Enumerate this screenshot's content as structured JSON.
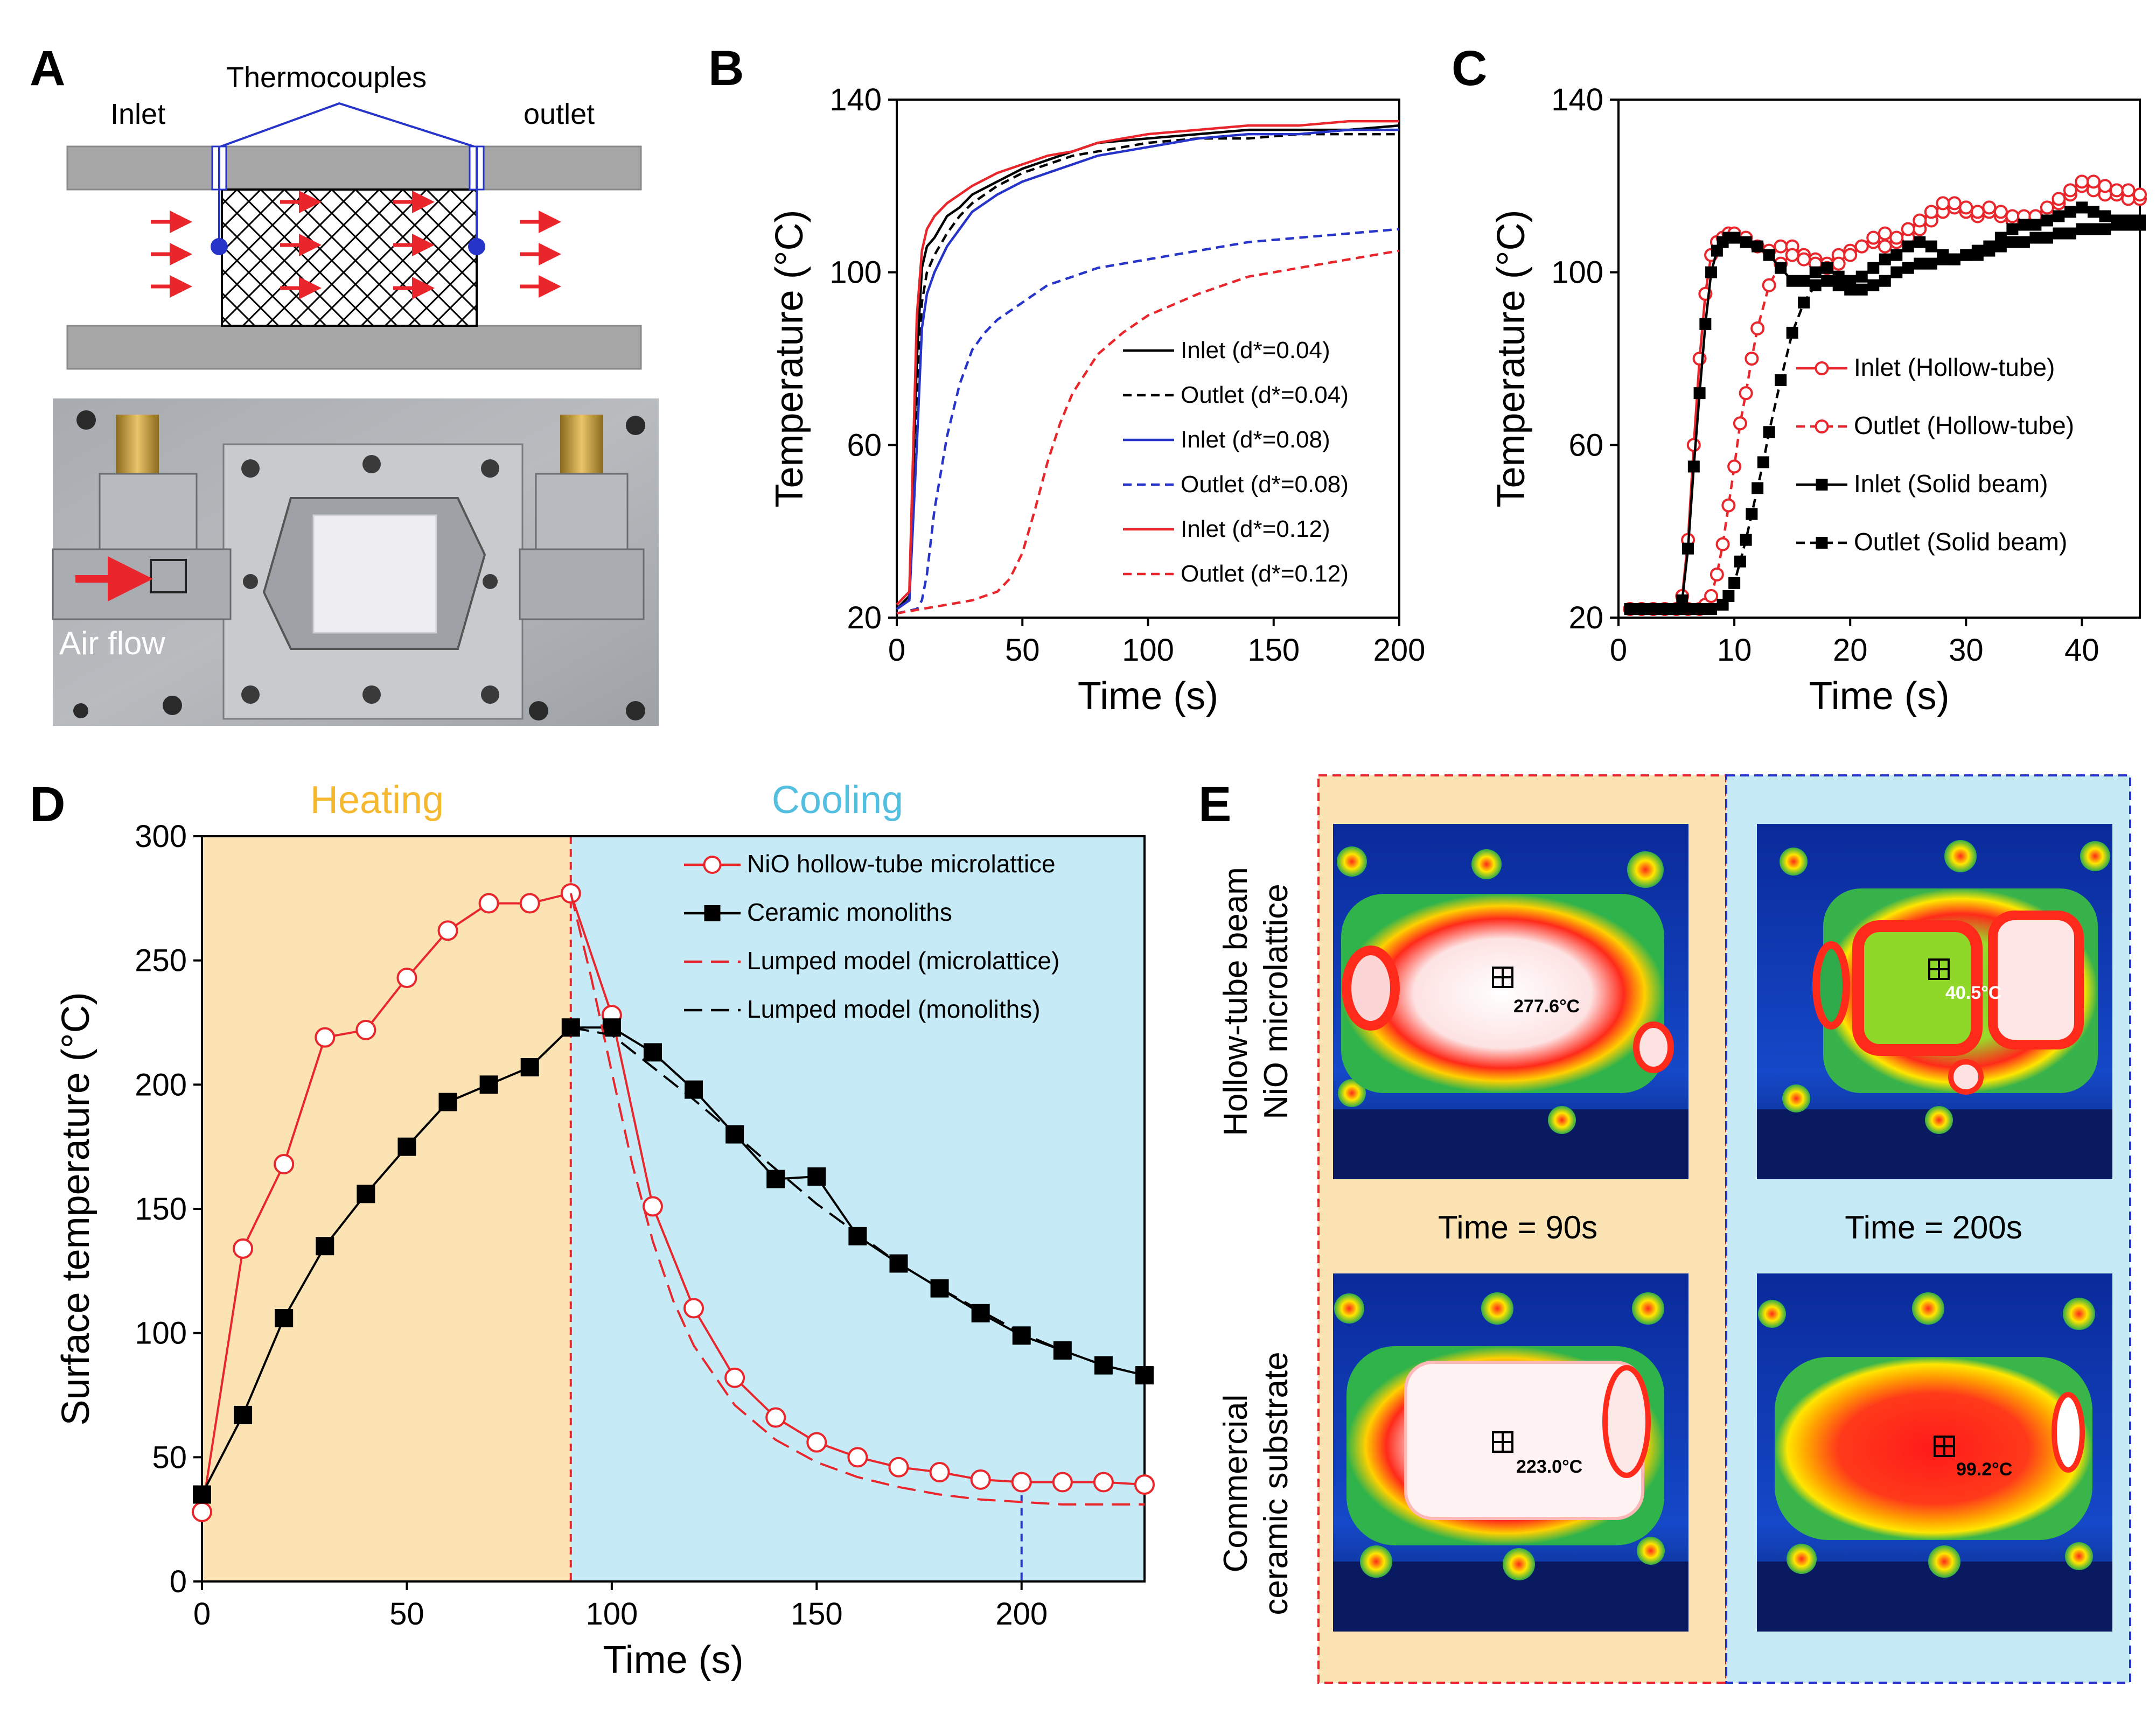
{
  "panel_letters": {
    "a": "A",
    "b": "B",
    "c": "C",
    "d": "D",
    "e": "E"
  },
  "panel_a": {
    "thermocouples": "Thermocouples",
    "inlet": "Inlet",
    "outlet": "outlet",
    "air_flow": "Air flow"
  },
  "panel_d": {
    "heating": "Heating",
    "cooling": "Cooling"
  },
  "panel_e": {
    "row1_label_line1": "Hollow-tube beam",
    "row1_label_line2": "NiO microlattice",
    "row2_label_line1": "Commercial",
    "row2_label_line2": "ceramic substrate",
    "time_90": "Time = 90s",
    "time_200": "Time = 200s",
    "t_hollow_90": "277.6°C",
    "t_hollow_200": "40.5°C",
    "t_ceramic_90": "223.0°C",
    "t_ceramic_200": "99.2°C"
  },
  "colors": {
    "red": "#e8262b",
    "blue": "#2634c9",
    "black": "#000000",
    "heating_bg": "#fbe3b4",
    "cooling_bg": "#c6ebf7",
    "heating_text": "#f5b82e",
    "cooling_text": "#52bfe0"
  },
  "chart_data": [
    {
      "panel": "B",
      "type": "line",
      "xlabel": "Time (s)",
      "ylabel": "Temperature (°C)",
      "xlim": [
        0,
        200
      ],
      "ylim": [
        20,
        140
      ],
      "xticks": [
        0,
        50,
        100,
        150,
        200
      ],
      "yticks": [
        20,
        60,
        100,
        140
      ],
      "legend_position": "bottom-right",
      "series": [
        {
          "name": "Inlet (d*=0.04)",
          "color": "#000000",
          "dash": false,
          "x": [
            0,
            5,
            8,
            10,
            12,
            15,
            20,
            25,
            30,
            40,
            50,
            60,
            70,
            80,
            100,
            120,
            140,
            160,
            180,
            200
          ],
          "y": [
            22,
            25,
            80,
            101,
            106,
            108,
            113,
            115,
            118,
            121,
            124,
            126,
            128,
            130,
            131,
            132,
            133,
            133,
            133,
            134
          ]
        },
        {
          "name": "Outlet (d*=0.04)",
          "color": "#000000",
          "dash": true,
          "x": [
            0,
            5,
            8,
            10,
            12,
            15,
            20,
            25,
            30,
            40,
            50,
            60,
            70,
            80,
            100,
            120,
            140,
            160,
            180,
            200
          ],
          "y": [
            22,
            24,
            70,
            93,
            100,
            104,
            109,
            113,
            116,
            120,
            123,
            125,
            127,
            128,
            130,
            131,
            131,
            132,
            132,
            132
          ]
        },
        {
          "name": "Inlet (d*=0.08)",
          "color": "#2634c9",
          "dash": false,
          "x": [
            0,
            5,
            8,
            10,
            12,
            15,
            20,
            25,
            30,
            40,
            50,
            60,
            70,
            80,
            100,
            120,
            140,
            160,
            180,
            200
          ],
          "y": [
            22,
            24,
            60,
            87,
            95,
            100,
            106,
            110,
            114,
            118,
            121,
            123,
            125,
            127,
            129,
            131,
            132,
            132,
            133,
            133
          ]
        },
        {
          "name": "Outlet (d*=0.08)",
          "color": "#2634c9",
          "dash": true,
          "x": [
            0,
            8,
            10,
            12,
            15,
            20,
            25,
            30,
            35,
            40,
            50,
            60,
            70,
            80,
            100,
            120,
            140,
            160,
            180,
            200
          ],
          "y": [
            21,
            22,
            24,
            30,
            45,
            62,
            74,
            82,
            86,
            89,
            93,
            97,
            99,
            101,
            103,
            105,
            107,
            108,
            109,
            110
          ]
        },
        {
          "name": "Inlet (d*=0.12)",
          "color": "#e8262b",
          "dash": false,
          "x": [
            0,
            5,
            8,
            10,
            12,
            15,
            20,
            25,
            30,
            40,
            50,
            60,
            70,
            80,
            100,
            120,
            140,
            160,
            180,
            200
          ],
          "y": [
            23,
            26,
            90,
            105,
            110,
            113,
            116,
            118,
            120,
            123,
            125,
            127,
            128,
            130,
            132,
            133,
            134,
            134,
            135,
            135
          ]
        },
        {
          "name": "Outlet (d*=0.12)",
          "color": "#e8262b",
          "dash": true,
          "x": [
            0,
            10,
            20,
            30,
            40,
            45,
            50,
            55,
            60,
            65,
            70,
            80,
            90,
            100,
            120,
            140,
            160,
            180,
            200
          ],
          "y": [
            21,
            22,
            23,
            24,
            26,
            29,
            35,
            45,
            56,
            65,
            72,
            81,
            86,
            90,
            95,
            99,
            101,
            103,
            105
          ]
        }
      ]
    },
    {
      "panel": "C",
      "type": "line",
      "xlabel": "Time (s)",
      "ylabel": "Temperature (°C)",
      "xlim": [
        0,
        45
      ],
      "ylim": [
        20,
        140
      ],
      "xticks": [
        0,
        10,
        20,
        30,
        40
      ],
      "yticks": [
        20,
        60,
        100,
        140
      ],
      "legend_position": "right",
      "series": [
        {
          "name": "Inlet (Hollow-tube)",
          "color": "#e8262b",
          "dash": false,
          "marker": "circle-open",
          "x": [
            1,
            2,
            3,
            4,
            5,
            5.5,
            6,
            6.5,
            7,
            7.5,
            8,
            8.5,
            9,
            9.5,
            10,
            11,
            12,
            13,
            14,
            15,
            16,
            17,
            18,
            19,
            20,
            21,
            22,
            23,
            24,
            25,
            26,
            27,
            28,
            29,
            30,
            31,
            32,
            33,
            34,
            35,
            36,
            37,
            38,
            39,
            40,
            41,
            42,
            43,
            44,
            45
          ],
          "y": [
            22,
            22,
            22,
            22,
            22,
            25,
            38,
            60,
            80,
            95,
            104,
            107,
            108,
            109,
            109,
            108,
            106,
            105,
            106,
            106,
            104,
            103,
            102,
            104,
            105,
            106,
            107,
            106,
            107,
            108,
            110,
            112,
            114,
            115,
            114,
            113,
            114,
            113,
            112,
            112,
            113,
            114,
            116,
            118,
            120,
            119,
            118,
            118,
            117,
            117
          ]
        },
        {
          "name": "Outlet (Hollow-tube)",
          "color": "#e8262b",
          "dash": true,
          "marker": "circle-open",
          "x": [
            1,
            2,
            3,
            4,
            5,
            6,
            7,
            7.5,
            8,
            8.5,
            9,
            9.5,
            10,
            10.5,
            11,
            11.5,
            12,
            13,
            14,
            15,
            16,
            17,
            18,
            19,
            20,
            21,
            22,
            23,
            24,
            25,
            26,
            27,
            28,
            29,
            30,
            31,
            32,
            33,
            34,
            35,
            36,
            37,
            38,
            39,
            40,
            41,
            42,
            43,
            44,
            45
          ],
          "y": [
            22,
            22,
            22,
            22,
            22,
            22,
            22,
            23,
            25,
            30,
            37,
            46,
            55,
            65,
            72,
            80,
            87,
            97,
            102,
            104,
            103,
            102,
            101,
            102,
            104,
            106,
            108,
            109,
            108,
            110,
            112,
            114,
            116,
            116,
            115,
            114,
            115,
            114,
            113,
            113,
            113,
            115,
            117,
            119,
            121,
            121,
            120,
            119,
            119,
            118
          ]
        },
        {
          "name": "Inlet (Solid beam)",
          "color": "#000000",
          "dash": false,
          "marker": "square-filled",
          "x": [
            1,
            2,
            3,
            4,
            5,
            5.5,
            6,
            6.5,
            7,
            7.5,
            8,
            8.5,
            9,
            9.5,
            10,
            11,
            12,
            13,
            14,
            15,
            16,
            17,
            18,
            19,
            20,
            21,
            22,
            23,
            24,
            25,
            26,
            27,
            28,
            29,
            30,
            31,
            32,
            33,
            34,
            35,
            36,
            37,
            38,
            39,
            40,
            41,
            42,
            43,
            44,
            45
          ],
          "y": [
            22,
            22,
            22,
            22,
            22,
            24,
            36,
            55,
            72,
            88,
            100,
            105,
            107,
            108,
            108,
            107,
            106,
            104,
            101,
            98,
            98,
            100,
            101,
            99,
            98,
            99,
            101,
            103,
            104,
            106,
            107,
            106,
            104,
            103,
            104,
            105,
            106,
            108,
            110,
            111,
            111,
            112,
            113,
            114,
            115,
            114,
            113,
            112,
            112,
            111
          ]
        },
        {
          "name": "Outlet (Solid beam)",
          "color": "#000000",
          "dash": true,
          "marker": "square-filled",
          "x": [
            1,
            2,
            3,
            4,
            5,
            6,
            7,
            8,
            9,
            9.5,
            10,
            10.5,
            11,
            11.5,
            12,
            12.5,
            13,
            14,
            15,
            16,
            17,
            18,
            19,
            20,
            21,
            22,
            23,
            24,
            25,
            26,
            27,
            28,
            29,
            30,
            31,
            32,
            33,
            34,
            35,
            36,
            37,
            38,
            39,
            40,
            41,
            42,
            43,
            44,
            45
          ],
          "y": [
            22,
            22,
            22,
            22,
            22,
            22,
            22,
            22,
            23,
            25,
            28,
            33,
            38,
            44,
            50,
            56,
            63,
            75,
            86,
            93,
            97,
            98,
            97,
            96,
            96,
            97,
            98,
            100,
            101,
            102,
            102,
            103,
            103,
            104,
            104,
            105,
            106,
            107,
            107,
            108,
            108,
            109,
            109,
            110,
            110,
            110,
            111,
            111,
            112
          ]
        }
      ]
    },
    {
      "panel": "D",
      "type": "line",
      "xlabel": "Time (s)",
      "ylabel": "Surface temperature (°C)",
      "xlim": [
        0,
        230
      ],
      "ylim": [
        0,
        300
      ],
      "xticks": [
        0,
        50,
        100,
        150,
        200
      ],
      "yticks": [
        0,
        50,
        100,
        150,
        200,
        250,
        300
      ],
      "legend_position": "top-right",
      "series": [
        {
          "name": "NiO hollow-tube microlattice",
          "color": "#e8262b",
          "dash": false,
          "marker": "circle-open",
          "x": [
            0,
            10,
            20,
            30,
            40,
            50,
            60,
            70,
            80,
            90,
            100,
            110,
            120,
            130,
            140,
            150,
            160,
            170,
            180,
            190,
            200,
            210,
            220,
            230
          ],
          "y": [
            28,
            134,
            168,
            219,
            222,
            243,
            262,
            273,
            273,
            277,
            228,
            151,
            110,
            82,
            66,
            56,
            50,
            46,
            44,
            41,
            40,
            40,
            40,
            39
          ]
        },
        {
          "name": "Ceramic monoliths",
          "color": "#000000",
          "dash": false,
          "marker": "square-filled",
          "x": [
            0,
            10,
            20,
            30,
            40,
            50,
            60,
            70,
            80,
            90,
            100,
            110,
            120,
            130,
            140,
            150,
            160,
            170,
            180,
            190,
            200,
            210,
            220,
            230
          ],
          "y": [
            35,
            67,
            106,
            135,
            156,
            175,
            193,
            200,
            207,
            223,
            223,
            213,
            198,
            180,
            162,
            163,
            139,
            128,
            118,
            108,
            99,
            93,
            87,
            83
          ]
        },
        {
          "name": "Lumped model (microlattice)",
          "color": "#e8262b",
          "dash": true,
          "x": [
            90,
            95,
            100,
            105,
            110,
            115,
            120,
            130,
            140,
            150,
            160,
            170,
            180,
            190,
            200,
            210,
            220,
            230
          ],
          "y": [
            277,
            243,
            205,
            168,
            137,
            113,
            95,
            71,
            57,
            48,
            42,
            38,
            35,
            33,
            32,
            31,
            31,
            31
          ]
        },
        {
          "name": "Lumped model (monoliths)",
          "color": "#000000",
          "dash": true,
          "x": [
            90,
            100,
            110,
            120,
            130,
            140,
            150,
            160,
            170,
            180,
            190,
            200,
            210,
            220,
            230
          ],
          "y": [
            223,
            220,
            207,
            194,
            180,
            166,
            152,
            140,
            128,
            118,
            109,
            100,
            93,
            87,
            83
          ]
        }
      ],
      "regions": [
        {
          "label": "Heating",
          "from": 0,
          "to": 90
        },
        {
          "label": "Cooling",
          "from": 90,
          "to": 230
        }
      ],
      "vlines": [
        90,
        200
      ]
    }
  ]
}
